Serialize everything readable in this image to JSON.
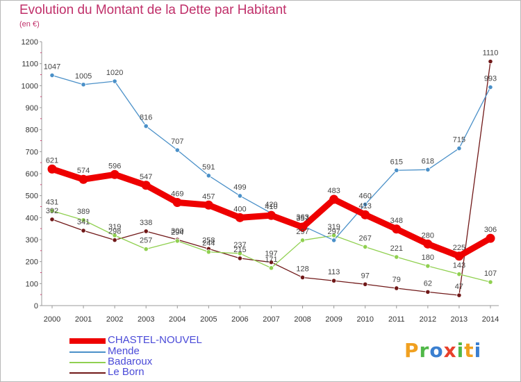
{
  "header": {
    "title": "Evolution du Montant de la Dette par Habitant",
    "subtitle": "(en €)"
  },
  "logo": {
    "text": "Proxiti",
    "colors": [
      "#f0a020",
      "#50b848",
      "#3a7fd0",
      "#e8402a",
      "#50b848",
      "#f0a020",
      "#3a7fd0"
    ]
  },
  "chart_data": {
    "type": "line",
    "title": "Evolution du Montant de la Dette par Habitant",
    "subtitle": "(en €)",
    "x": [
      "2000",
      "2001",
      "2002",
      "2003",
      "2004",
      "2005",
      "2006",
      "2007",
      "2008",
      "2009",
      "2010",
      "2011",
      "2012",
      "2013",
      "2014"
    ],
    "ylim": [
      0,
      1200
    ],
    "yticks": [
      0,
      100,
      200,
      300,
      400,
      500,
      600,
      700,
      800,
      900,
      1000,
      1100,
      1200
    ],
    "grid": false,
    "legend_position": "bottom-left",
    "series": [
      {
        "name": "CHASTEL-NOUVEL",
        "color": "#ee0000",
        "emphasis": true,
        "values": [
          621,
          574,
          596,
          547,
          469,
          457,
          400,
          410,
          357,
          483,
          413,
          348,
          280,
          225,
          306
        ]
      },
      {
        "name": "Mende",
        "color": "#4a90c8",
        "values": [
          1047,
          1005,
          1020,
          816,
          707,
          591,
          499,
          420,
          363,
          297,
          460,
          615,
          618,
          715,
          993
        ]
      },
      {
        "name": "Badaroux",
        "color": "#90d050",
        "values": [
          431,
          389,
          319,
          257,
          294,
          244,
          237,
          171,
          297,
          319,
          267,
          221,
          180,
          143,
          107
        ]
      },
      {
        "name": "Le Born",
        "color": "#701818",
        "values": [
          392,
          341,
          298,
          338,
          300,
          258,
          215,
          197,
          128,
          113,
          97,
          79,
          62,
          47,
          1110
        ]
      }
    ]
  }
}
